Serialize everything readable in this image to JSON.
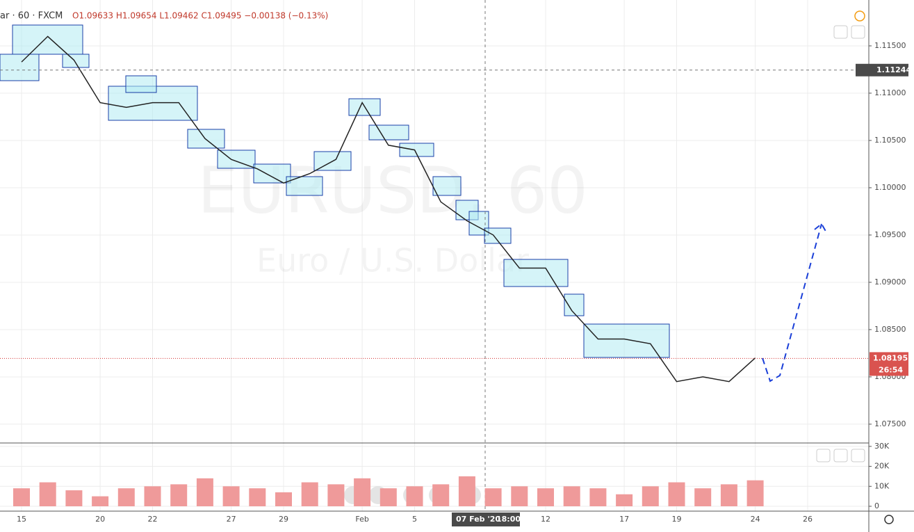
{
  "chart_data": {
    "type": "line",
    "symbol_info": "ar · 60 · FXCM",
    "ohlc_text": "O1.09633 H1.09654 L1.09462 C1.09495 −0.00138 (−0.13%)",
    "watermark_symbol": "EURUSD, 60",
    "watermark_name": "Euro / U.S. Dollar",
    "crosshair_price": 1.11244,
    "crosshair_date": "07 Feb '20",
    "crosshair_time": "18:00",
    "last_price": 1.08195,
    "countdown": "26:54",
    "categories": [
      "15",
      null,
      null,
      "20",
      null,
      "22",
      null,
      null,
      "27",
      null,
      "29",
      null,
      null,
      "Feb",
      null,
      "5",
      null,
      null,
      null,
      null,
      "12",
      null,
      null,
      "17",
      null,
      "19",
      null,
      null,
      "24",
      null,
      "26"
    ],
    "series": [
      {
        "name": "EURUSD",
        "color": "#222222",
        "values": [
          1.1133,
          1.116,
          1.1135,
          1.109,
          1.1085,
          1.109,
          1.109,
          1.1052,
          1.103,
          1.102,
          1.1005,
          1.1015,
          1.103,
          1.109,
          1.1045,
          1.104,
          1.0985,
          1.0965,
          1.095,
          1.0915,
          1.0915,
          1.087,
          1.084,
          1.084,
          1.0835,
          1.0795,
          1.08,
          1.0795,
          1.082,
          null,
          null
        ]
      },
      {
        "name": "Volume",
        "color": "#ef9a9a",
        "axis": "y2",
        "values": [
          9000,
          12000,
          8000,
          5000,
          9000,
          10000,
          11000,
          14000,
          10000,
          9000,
          7000,
          12000,
          11000,
          14000,
          9000,
          10000,
          11000,
          15000,
          9000,
          10000,
          9000,
          10000,
          9000,
          6000,
          10000,
          12000,
          9000,
          11000,
          13000,
          null,
          null
        ]
      }
    ],
    "ylim": [
      1.07301,
      1.11985
    ],
    "yticks": [
      {
        "value": 1.075,
        "label": "1.07500"
      },
      {
        "value": 1.08,
        "label": "1.08000"
      },
      {
        "value": 1.085,
        "label": "1.08500"
      },
      {
        "value": 1.09,
        "label": "1.09000"
      },
      {
        "value": 1.095,
        "label": "1.09500"
      },
      {
        "value": 1.1,
        "label": "1.10000"
      },
      {
        "value": 1.105,
        "label": "1.10500"
      },
      {
        "value": 1.11,
        "label": "1.11000"
      },
      {
        "value": 1.115,
        "label": "1.11500"
      }
    ],
    "y2lim": [
      0,
      31700
    ],
    "y2ticks": [
      0,
      {
        "value": 10000,
        "label": "10K"
      },
      {
        "value": 20000,
        "label": "20K"
      },
      {
        "value": 30000,
        "label": "30K"
      }
    ],
    "grid": true
  }
}
